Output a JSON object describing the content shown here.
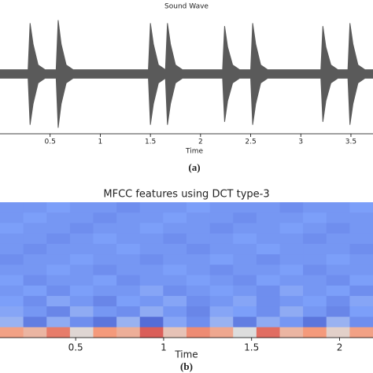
{
  "chart_data": [
    {
      "type": "envelope",
      "title": "Sound Wave",
      "x_label": "Time",
      "caption": "(a)",
      "color": "#5a5a5a",
      "x": [
        0,
        0.28,
        0.3,
        0.33,
        0.38,
        0.45,
        0.56,
        0.58,
        0.61,
        0.66,
        0.73,
        1.48,
        1.5,
        1.53,
        1.58,
        1.65,
        1.67,
        1.7,
        1.75,
        1.82,
        2.22,
        2.24,
        2.27,
        2.32,
        2.39,
        2.5,
        2.52,
        2.55,
        2.6,
        2.67,
        3.2,
        3.22,
        3.25,
        3.3,
        3.37,
        3.47,
        3.49,
        3.52,
        3.57,
        3.64,
        3.72
      ],
      "values": [
        0.07,
        0.07,
        0.85,
        0.5,
        0.15,
        0.07,
        0.07,
        0.9,
        0.5,
        0.15,
        0.07,
        0.07,
        0.85,
        0.5,
        0.15,
        0.07,
        0.85,
        0.5,
        0.15,
        0.07,
        0.07,
        0.8,
        0.45,
        0.15,
        0.07,
        0.07,
        0.85,
        0.5,
        0.15,
        0.07,
        0.07,
        0.8,
        0.45,
        0.15,
        0.07,
        0.07,
        0.85,
        0.5,
        0.15,
        0.07,
        0.07
      ],
      "xlim": [
        0,
        3.72
      ],
      "ylim": [
        -1,
        1
      ],
      "xticks": [
        0.5,
        1,
        1.5,
        2,
        2.5,
        3,
        3.5
      ]
    },
    {
      "type": "heatmap",
      "title": "MFCC features using DCT type-3",
      "x_label": "Time",
      "caption": "(b)",
      "colormap": "coolwarm",
      "clim": [
        -1,
        1
      ],
      "xlim": [
        0.07,
        2.19
      ],
      "xticks": [
        0.5,
        1,
        1.5,
        2
      ],
      "z": [
        [
          -0.55,
          -0.55,
          -0.5,
          -0.55,
          -0.55,
          -0.6,
          -0.55,
          -0.55,
          -0.5,
          -0.55,
          -0.55,
          -0.55,
          -0.6,
          -0.55,
          -0.55,
          -0.5
        ],
        [
          -0.55,
          -0.5,
          -0.55,
          -0.55,
          -0.6,
          -0.55,
          -0.55,
          -0.5,
          -0.55,
          -0.55,
          -0.6,
          -0.55,
          -0.55,
          -0.5,
          -0.55,
          -0.55
        ],
        [
          -0.5,
          -0.55,
          -0.55,
          -0.6,
          -0.55,
          -0.55,
          -0.5,
          -0.55,
          -0.55,
          -0.6,
          -0.55,
          -0.55,
          -0.5,
          -0.55,
          -0.6,
          -0.55
        ],
        [
          -0.55,
          -0.55,
          -0.6,
          -0.55,
          -0.5,
          -0.55,
          -0.55,
          -0.6,
          -0.55,
          -0.55,
          -0.5,
          -0.55,
          -0.55,
          -0.6,
          -0.55,
          -0.55
        ],
        [
          -0.55,
          -0.6,
          -0.55,
          -0.55,
          -0.55,
          -0.5,
          -0.55,
          -0.55,
          -0.6,
          -0.55,
          -0.55,
          -0.5,
          -0.55,
          -0.55,
          -0.55,
          -0.6
        ],
        [
          -0.6,
          -0.55,
          -0.55,
          -0.5,
          -0.55,
          -0.55,
          -0.6,
          -0.55,
          -0.55,
          -0.5,
          -0.55,
          -0.6,
          -0.55,
          -0.55,
          -0.5,
          -0.55
        ],
        [
          -0.55,
          -0.55,
          -0.5,
          -0.55,
          -0.6,
          -0.55,
          -0.55,
          -0.5,
          -0.55,
          -0.6,
          -0.55,
          -0.55,
          -0.5,
          -0.6,
          -0.55,
          -0.55
        ],
        [
          -0.5,
          -0.6,
          -0.55,
          -0.55,
          -0.5,
          -0.6,
          -0.55,
          -0.55,
          -0.5,
          -0.55,
          -0.6,
          -0.5,
          -0.55,
          -0.55,
          -0.6,
          -0.5
        ],
        [
          -0.55,
          -0.5,
          -0.6,
          -0.5,
          -0.55,
          -0.55,
          -0.45,
          -0.6,
          -0.55,
          -0.5,
          -0.55,
          -0.6,
          -0.45,
          -0.55,
          -0.5,
          -0.6
        ],
        [
          -0.5,
          -0.6,
          -0.45,
          -0.55,
          -0.65,
          -0.5,
          -0.55,
          -0.45,
          -0.6,
          -0.55,
          -0.45,
          -0.6,
          -0.55,
          -0.5,
          -0.6,
          -0.45
        ],
        [
          -0.45,
          -0.55,
          -0.65,
          -0.4,
          -0.55,
          -0.6,
          -0.4,
          -0.55,
          -0.65,
          -0.45,
          -0.5,
          -0.6,
          -0.4,
          -0.55,
          -0.65,
          -0.5
        ],
        [
          -0.35,
          -0.7,
          -0.4,
          -0.6,
          -0.75,
          -0.35,
          -0.8,
          -0.45,
          -0.6,
          -0.35,
          -0.7,
          -0.4,
          -0.55,
          -0.75,
          -0.35,
          -0.6
        ],
        [
          0.45,
          0.3,
          0.6,
          0.05,
          0.5,
          0.35,
          0.7,
          0.2,
          0.55,
          0.4,
          0.0,
          0.65,
          0.3,
          0.5,
          0.1,
          0.45
        ]
      ]
    }
  ]
}
